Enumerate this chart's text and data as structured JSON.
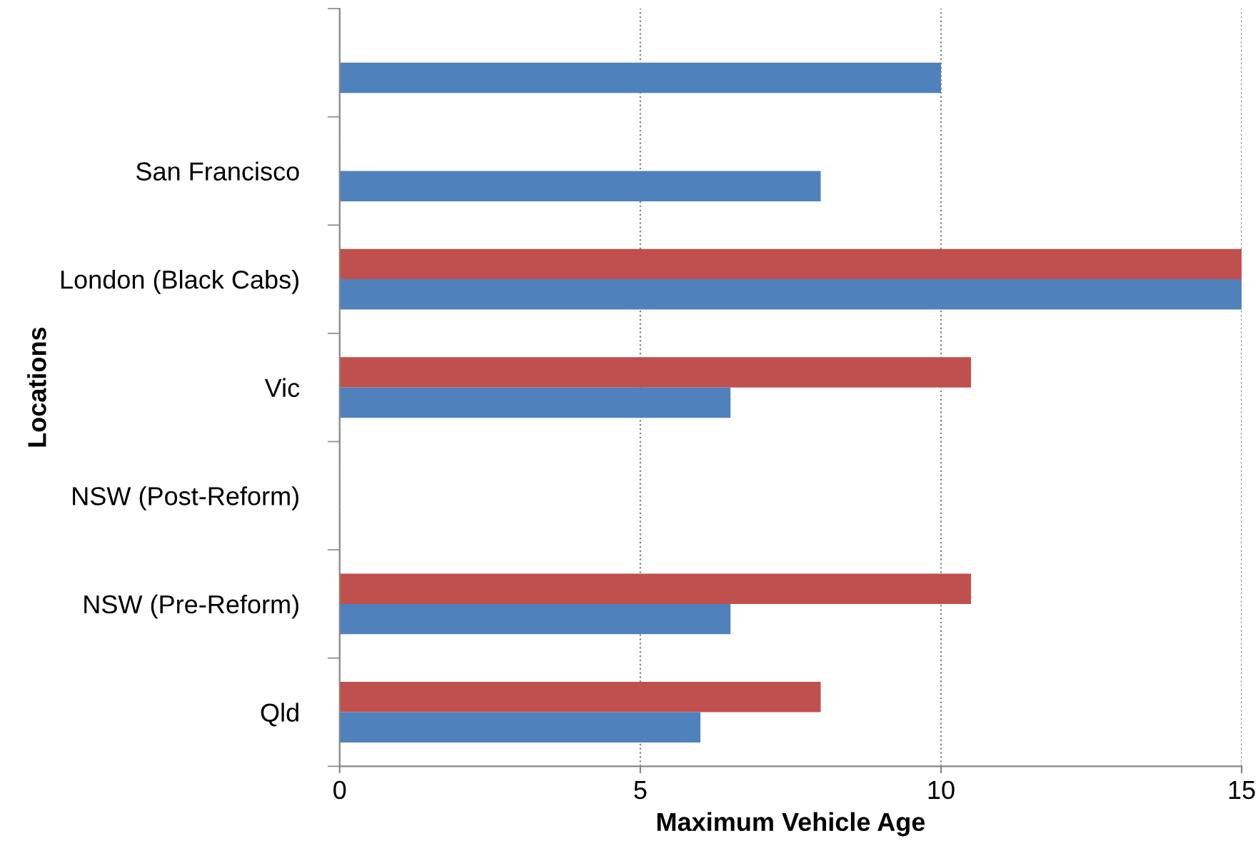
{
  "chart_data": {
    "type": "bar",
    "orientation": "horizontal",
    "xlabel": "Maximum Vehicle Age",
    "ylabel": "Locations",
    "categories": [
      null,
      "San Francisco",
      "London (Black Cabs)",
      "Vic",
      "NSW (Post-Reform)",
      "NSW (Pre-Reform)",
      "Qld"
    ],
    "series": [
      {
        "color": "#c0504d",
        "values": [
          null,
          null,
          15,
          10.5,
          null,
          10.5,
          8
        ]
      },
      {
        "color": "#4f81bd",
        "values": [
          10,
          8,
          15,
          6.5,
          null,
          6.5,
          6
        ]
      }
    ],
    "xlim": [
      0,
      15
    ],
    "xticks": [
      0,
      5,
      10,
      15
    ],
    "grid": "x",
    "line_style": "dotted"
  }
}
